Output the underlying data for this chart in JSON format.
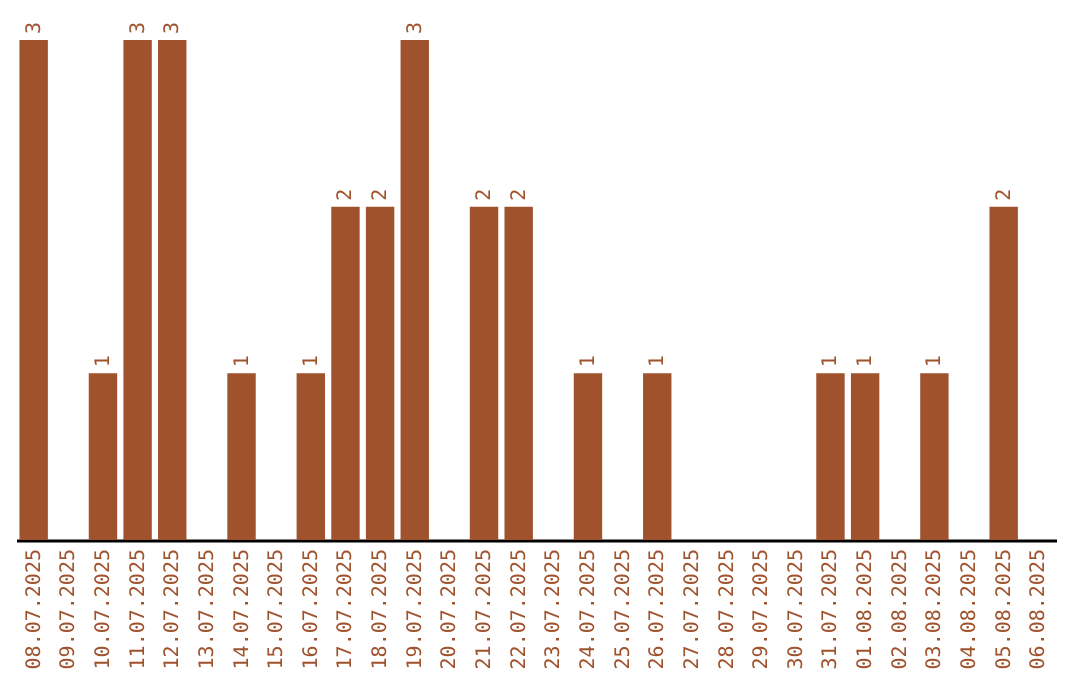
{
  "chart_data": {
    "type": "bar",
    "categories": [
      "08.07.2025",
      "09.07.2025",
      "10.07.2025",
      "11.07.2025",
      "12.07.2025",
      "13.07.2025",
      "14.07.2025",
      "15.07.2025",
      "16.07.2025",
      "17.07.2025",
      "18.07.2025",
      "19.07.2025",
      "20.07.2025",
      "21.07.2025",
      "22.07.2025",
      "23.07.2025",
      "24.07.2025",
      "25.07.2025",
      "26.07.2025",
      "27.07.2025",
      "28.07.2025",
      "29.07.2025",
      "30.07.2025",
      "31.07.2025",
      "01.08.2025",
      "02.08.2025",
      "03.08.2025",
      "04.08.2025",
      "05.08.2025",
      "06.08.2025"
    ],
    "values": [
      3,
      0,
      1,
      3,
      3,
      0,
      1,
      0,
      1,
      2,
      2,
      3,
      0,
      2,
      2,
      0,
      1,
      0,
      1,
      0,
      0,
      0,
      0,
      1,
      1,
      0,
      1,
      0,
      2,
      0
    ],
    "value_labels": [
      "3",
      null,
      "1",
      "3",
      "3",
      null,
      "1",
      null,
      "1",
      "2",
      "2",
      "3",
      null,
      "2",
      "2",
      null,
      "1",
      null,
      "1",
      null,
      null,
      null,
      null,
      "1",
      "1",
      null,
      "1",
      null,
      "2",
      null
    ],
    "color": "#a0522d",
    "ylim": [
      0,
      3
    ],
    "tick_labels": "x",
    "grid": false
  }
}
